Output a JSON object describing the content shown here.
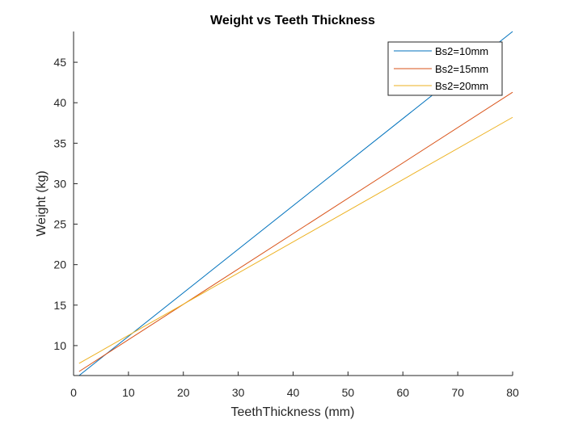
{
  "chart_data": {
    "type": "line",
    "title": "Weight vs Teeth Thickness",
    "xlabel": "TeethThickness (mm)",
    "ylabel": "Weight (kg)",
    "xlim": [
      0,
      80
    ],
    "ylim": [
      6.3,
      48.8
    ],
    "xticks": [
      0,
      10,
      20,
      30,
      40,
      50,
      60,
      70,
      80
    ],
    "yticks": [
      10,
      15,
      20,
      25,
      30,
      35,
      40,
      45
    ],
    "grid": false,
    "legend_position": "top-right",
    "series": [
      {
        "name": "Bs2=10mm",
        "color": "#0072BD",
        "x": [
          1,
          80
        ],
        "y": [
          6.3,
          48.8
        ]
      },
      {
        "name": "Bs2=15mm",
        "color": "#D95319",
        "x": [
          1,
          80
        ],
        "y": [
          6.8,
          41.3
        ]
      },
      {
        "name": "Bs2=20mm",
        "color": "#EDB120",
        "x": [
          1,
          80
        ],
        "y": [
          7.8,
          38.2
        ]
      }
    ]
  }
}
